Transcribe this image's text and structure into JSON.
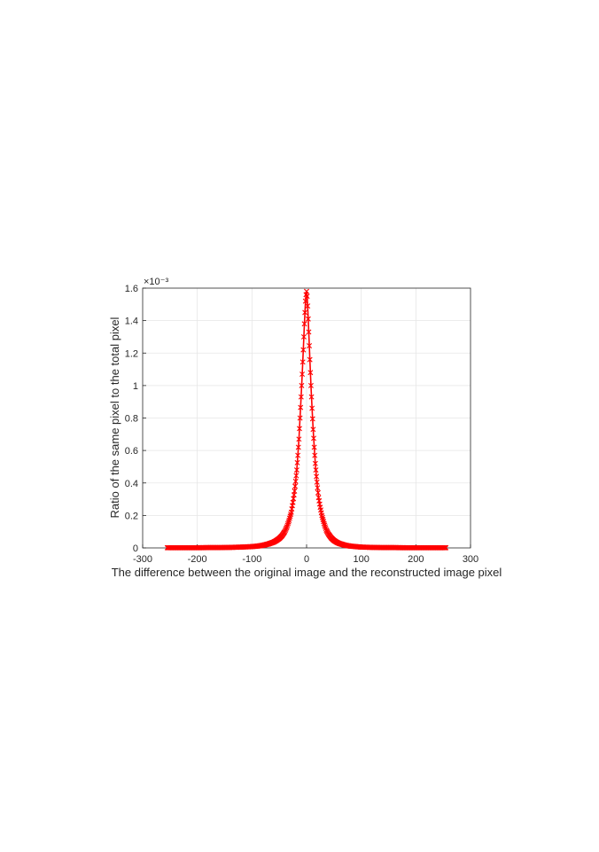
{
  "chart_data": {
    "type": "line",
    "title": "",
    "xlabel": "The difference between the original image and the reconstructed image pixel",
    "ylabel": "Ratio of the same pixel to the total pixel",
    "xlim": [
      -300,
      300
    ],
    "ylim": [
      0,
      1.6
    ],
    "y_exponent_label": "×10⁻³",
    "grid": true,
    "legend": "none",
    "x_ticks": [
      -300,
      -200,
      -100,
      0,
      100,
      200,
      300
    ],
    "x_tick_labels": [
      "-300",
      "-200",
      "-100",
      "0",
      "100",
      "200",
      "300"
    ],
    "y_ticks": [
      0,
      0.2,
      0.4,
      0.6,
      0.8,
      1,
      1.2,
      1.4,
      1.6
    ],
    "y_tick_labels": [
      "0",
      "0.2",
      "0.4",
      "0.6",
      "0.8",
      "1",
      "1.2",
      "1.4",
      "1.6"
    ],
    "series": [
      {
        "color": "#ff0000",
        "marker": "x",
        "x": [
          -255,
          -240,
          -220,
          -200,
          -180,
          -160,
          -140,
          -120,
          -100,
          -90,
          -80,
          -70,
          -60,
          -55,
          -50,
          -45,
          -40,
          -36,
          -32,
          -28,
          -25,
          -22,
          -20,
          -18,
          -16,
          -14,
          -12,
          -10,
          -8,
          -6,
          -4,
          -2,
          -1,
          0,
          1,
          2,
          4,
          6,
          8,
          10,
          12,
          14,
          16,
          18,
          20,
          22,
          25,
          28,
          32,
          36,
          40,
          45,
          50,
          55,
          60,
          70,
          80,
          90,
          100,
          120,
          140,
          160,
          180,
          200,
          220,
          240,
          255
        ],
        "values": [
          0.001,
          0.001,
          0.001,
          0.001,
          0.002,
          0.002,
          0.003,
          0.005,
          0.008,
          0.011,
          0.016,
          0.024,
          0.036,
          0.046,
          0.058,
          0.075,
          0.1,
          0.13,
          0.17,
          0.22,
          0.28,
          0.35,
          0.41,
          0.48,
          0.57,
          0.67,
          0.8,
          0.93,
          1.07,
          1.22,
          1.38,
          1.52,
          1.56,
          1.58,
          1.55,
          1.49,
          1.33,
          1.16,
          1.0,
          0.86,
          0.73,
          0.62,
          0.52,
          0.44,
          0.37,
          0.31,
          0.25,
          0.2,
          0.15,
          0.11,
          0.085,
          0.062,
          0.046,
          0.035,
          0.027,
          0.017,
          0.011,
          0.008,
          0.005,
          0.003,
          0.002,
          0.002,
          0.001,
          0.001,
          0.001,
          0.001,
          0.001
        ]
      }
    ]
  }
}
